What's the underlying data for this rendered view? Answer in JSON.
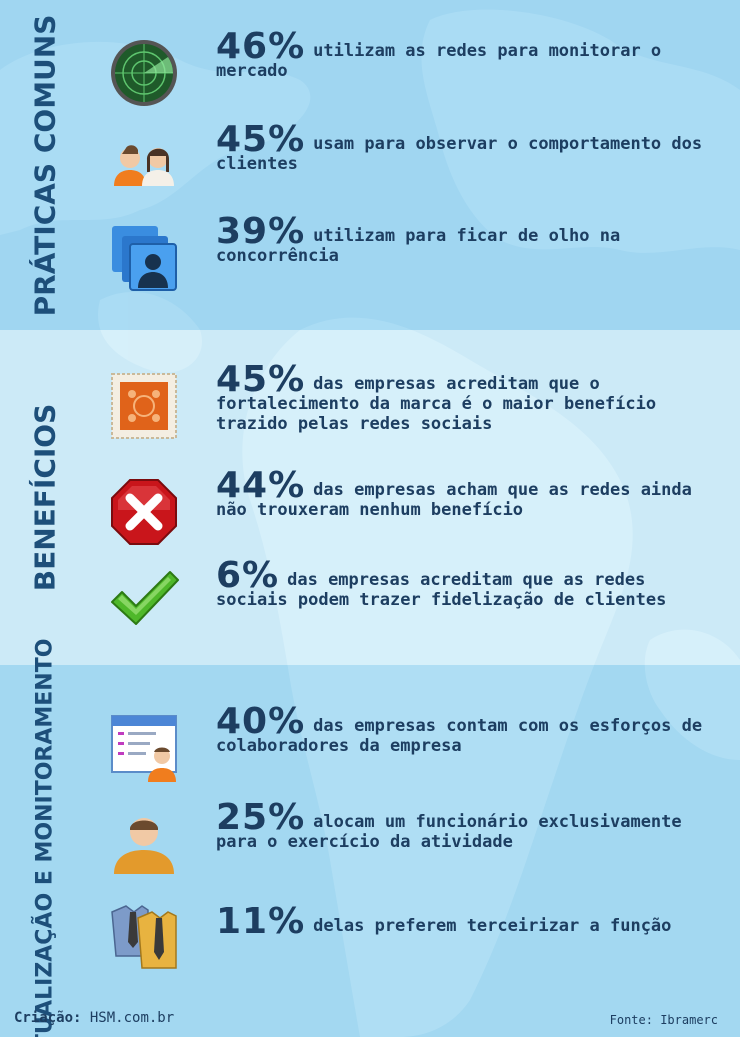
{
  "sections": [
    {
      "title": "PRÁTICAS COMUNS",
      "items": [
        {
          "icon": "radar-icon",
          "pct": "46%",
          "text": "utilizam as redes para monitorar o mercado"
        },
        {
          "icon": "people-pair-icon",
          "pct": "45%",
          "text": "usam para observar o comportamento dos clientes"
        },
        {
          "icon": "contacts-icon",
          "pct": "39%",
          "text": "utilizam para ficar de olho na concorrência"
        }
      ]
    },
    {
      "title": "BENEFÍCIOS",
      "items": [
        {
          "icon": "stamp-icon",
          "pct": "45%",
          "text": "das empresas acreditam que o fortalecimento da marca é o maior benefício trazido pelas redes sociais"
        },
        {
          "icon": "error-stop-icon",
          "pct": "44%",
          "text": "das empresas acham que as redes ainda não trouxeram nenhum benefício"
        },
        {
          "icon": "checkmark-icon",
          "pct": "6%",
          "text": "das empresas acreditam que as redes sociais podem trazer fidelização de clientes"
        }
      ]
    },
    {
      "title": "ATUALIZAÇÃO E MONITORAMENTO",
      "items": [
        {
          "icon": "employee-list-icon",
          "pct": "40%",
          "text": "das empresas contam com os esforços de colaboradores da empresa"
        },
        {
          "icon": "user-icon",
          "pct": "25%",
          "text": "alocam um funcionário exclusivamente para o exercício da atividade"
        },
        {
          "icon": "shirts-ties-icon",
          "pct": "11%",
          "text": "delas preferem terceirizar a função"
        }
      ]
    }
  ],
  "footer": {
    "credit_label": "Criação:",
    "credit_value": "HSM.com.br",
    "source": "Fonte: Ibramerc"
  },
  "colors": {
    "text": "#1d3e61",
    "section_title": "#1d4f7a",
    "background": "#aedcf2"
  }
}
